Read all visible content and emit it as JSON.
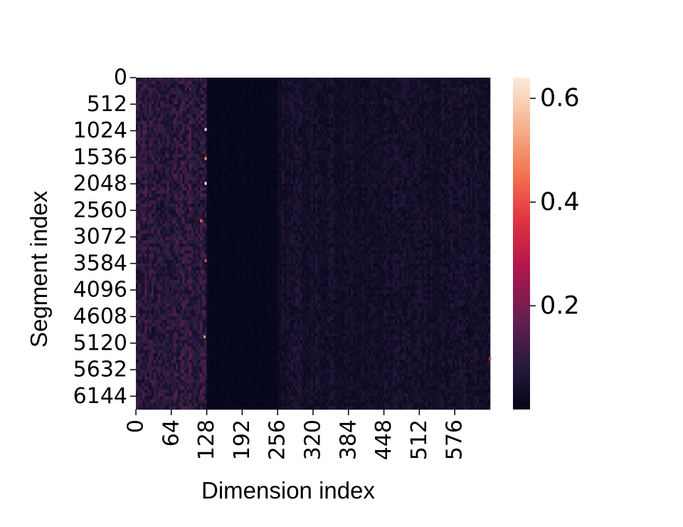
{
  "chart_data": {
    "type": "heatmap",
    "title": "",
    "xlabel": "Dimension index",
    "ylabel": "Segment index",
    "x_range": [
      0,
      640
    ],
    "y_range": [
      0,
      6400
    ],
    "x_ticks": [
      "0",
      "64",
      "128",
      "192",
      "256",
      "320",
      "384",
      "448",
      "512",
      "576"
    ],
    "y_ticks": [
      "0",
      "512",
      "1024",
      "1536",
      "2048",
      "2560",
      "3072",
      "3584",
      "4096",
      "4608",
      "5120",
      "5632",
      "6144"
    ],
    "colormap": "rocket",
    "colorbar": {
      "range": [
        0.0,
        0.64
      ],
      "ticks": [
        "0.2",
        "0.4",
        "0.6"
      ],
      "stops": [
        "#03051a",
        "#2b1c3e",
        "#6b1f53",
        "#b1164b",
        "#e13342",
        "#f37651",
        "#f6b48f",
        "#faebdd"
      ]
    },
    "column_bands": [
      {
        "dims": [
          0,
          128
        ],
        "mean_value": 0.09,
        "description": "brighter, heavily textured band"
      },
      {
        "dims": [
          128,
          256
        ],
        "mean_value": 0.01,
        "description": "nearly uniform dark band"
      },
      {
        "dims": [
          256,
          640
        ],
        "mean_value": 0.045,
        "description": "moderate striped texture"
      }
    ],
    "peaks": [
      {
        "dim": 126,
        "segment": 1000,
        "value": 0.62
      },
      {
        "dim": 126,
        "segment": 1560,
        "value": 0.5
      },
      {
        "dim": 126,
        "segment": 2040,
        "value": 0.64
      },
      {
        "dim": 118,
        "segment": 2760,
        "value": 0.45
      },
      {
        "dim": 126,
        "segment": 3530,
        "value": 0.4
      },
      {
        "dim": 124,
        "segment": 5000,
        "value": 0.5
      },
      {
        "dim": 640,
        "segment": 5420,
        "value": 0.4
      }
    ]
  }
}
